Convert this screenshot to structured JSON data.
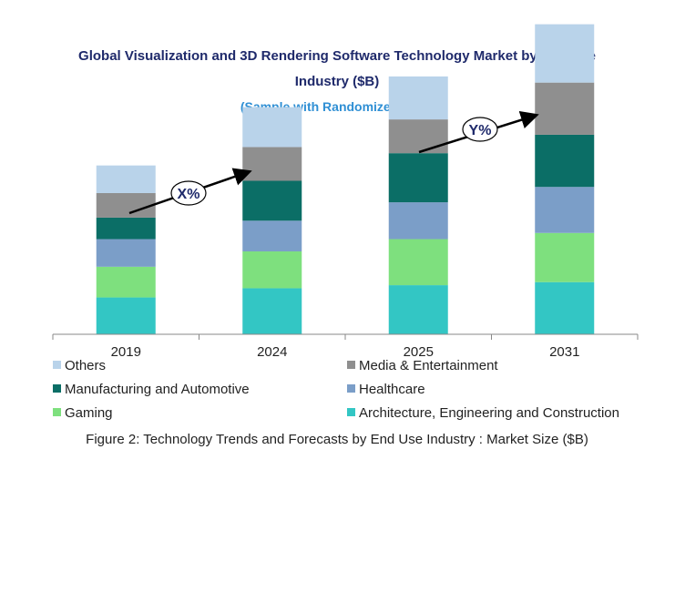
{
  "chart_data": {
    "type": "bar",
    "stacked": true,
    "title_line1": "Global Visualization and 3D Rendering Software Technology Market by End Use",
    "title_line2": "Industry ($B)",
    "subtitle": "(Sample with Randomized Data)",
    "categories": [
      "2019",
      "2024",
      "2025",
      "2031"
    ],
    "series": [
      {
        "name": "Architecture, Engineering and Construction",
        "color": "#33c6c4",
        "values": [
          1.2,
          1.5,
          1.6,
          1.7
        ]
      },
      {
        "name": "Gaming",
        "color": "#7ee07e",
        "values": [
          1.0,
          1.2,
          1.5,
          1.6
        ]
      },
      {
        "name": "Healthcare",
        "color": "#7b9ec8",
        "values": [
          0.9,
          1.0,
          1.2,
          1.5
        ]
      },
      {
        "name": "Manufacturing and Automotive",
        "color": "#0b6e66",
        "values": [
          0.7,
          1.3,
          1.6,
          1.7
        ]
      },
      {
        "name": "Media & Entertainment",
        "color": "#8f8f8f",
        "values": [
          0.8,
          1.1,
          1.1,
          1.7
        ]
      },
      {
        "name": "Others",
        "color": "#b9d3ea",
        "values": [
          0.9,
          1.3,
          1.4,
          1.9
        ]
      }
    ],
    "annotations": [
      "X%",
      "Y%"
    ],
    "legend_position": "bottom",
    "grid": false
  },
  "caption": "Figure 2: Technology  Trends  and Forecasts by End Use Industry  : Market Size ($B)"
}
